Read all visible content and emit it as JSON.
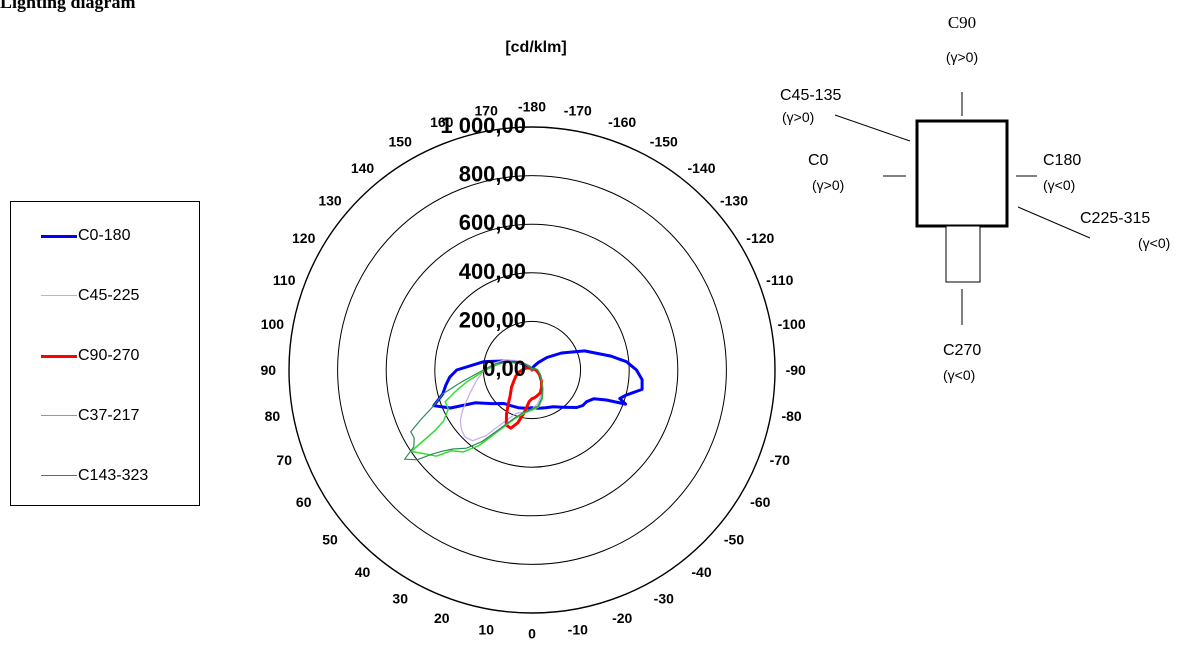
{
  "heading": "Lighting diagram",
  "legend": [
    {
      "label": "C0-180",
      "color": "#0000ff",
      "width": 3
    },
    {
      "label": "C45-225",
      "color": "#c8a8f0",
      "width": 1.2
    },
    {
      "label": "C90-270",
      "color": "#ff0000",
      "width": 3
    },
    {
      "label": "C37-217",
      "color": "#33dd33",
      "width": 1.5
    },
    {
      "label": "C143-323",
      "color": "#2e8b57",
      "width": 1.2
    }
  ],
  "orientation_key": {
    "top": "C90",
    "c45": "C45-135",
    "c45_sub": "(γ>0)",
    "c0": "C0",
    "c0_sub": "(γ>0)",
    "c180": "C180",
    "c180_sub": "(γ<0)",
    "c225": "C225-315",
    "c225_sub": "(γ<0)",
    "c270": "C270",
    "c270_sub": "(γ<0)",
    "top_sub": "(γ>0)"
  },
  "chart_data": {
    "type": "polar",
    "unit_label": "[cd/klm]",
    "radial_ticks": [
      0,
      200,
      400,
      600,
      800,
      1000
    ],
    "radial_tick_labels": [
      "0,00",
      "200,00",
      "400,00",
      "600,00",
      "800,00",
      "1 000,00"
    ],
    "rmax": 1000,
    "angle_labels": [
      {
        "angle": -180,
        "text": "-180"
      },
      {
        "angle": -170,
        "text": "-170"
      },
      {
        "angle": -160,
        "text": "-160"
      },
      {
        "angle": -150,
        "text": "-150"
      },
      {
        "angle": -140,
        "text": "-140"
      },
      {
        "angle": -130,
        "text": "-130"
      },
      {
        "angle": -120,
        "text": "-120"
      },
      {
        "angle": -110,
        "text": "-110"
      },
      {
        "angle": -100,
        "text": "-100"
      },
      {
        "angle": -90,
        "text": "-90"
      },
      {
        "angle": -80,
        "text": "-80"
      },
      {
        "angle": -70,
        "text": "-70"
      },
      {
        "angle": -60,
        "text": "-60"
      },
      {
        "angle": -50,
        "text": "-50"
      },
      {
        "angle": -40,
        "text": "-40"
      },
      {
        "angle": -30,
        "text": "-30"
      },
      {
        "angle": -20,
        "text": "-20"
      },
      {
        "angle": -10,
        "text": "-10"
      },
      {
        "angle": 0,
        "text": "0"
      },
      {
        "angle": 10,
        "text": "10"
      },
      {
        "angle": 20,
        "text": "20"
      },
      {
        "angle": 30,
        "text": "30"
      },
      {
        "angle": 40,
        "text": "40"
      },
      {
        "angle": 50,
        "text": "50"
      },
      {
        "angle": 60,
        "text": "60"
      },
      {
        "angle": 70,
        "text": "70"
      },
      {
        "angle": 80,
        "text": "80"
      },
      {
        "angle": 90,
        "text": "90"
      },
      {
        "angle": 100,
        "text": "100"
      },
      {
        "angle": 110,
        "text": "110"
      },
      {
        "angle": 120,
        "text": "120"
      },
      {
        "angle": 130,
        "text": "130"
      },
      {
        "angle": 140,
        "text": "140"
      },
      {
        "angle": 150,
        "text": "150"
      },
      {
        "angle": 160,
        "text": "160"
      },
      {
        "angle": 170,
        "text": "170"
      }
    ],
    "series": [
      {
        "name": "C0-180",
        "points": [
          [
            -180,
            0
          ],
          [
            -170,
            5
          ],
          [
            -160,
            10
          ],
          [
            -150,
            20
          ],
          [
            -140,
            40
          ],
          [
            -130,
            80
          ],
          [
            -120,
            140
          ],
          [
            -110,
            230
          ],
          [
            -100,
            330
          ],
          [
            -95,
            390
          ],
          [
            -90,
            430
          ],
          [
            -85,
            455
          ],
          [
            -80,
            460
          ],
          [
            -75,
            400
          ],
          [
            -72,
            380
          ],
          [
            -70,
            410
          ],
          [
            -68,
            330
          ],
          [
            -65,
            280
          ],
          [
            -60,
            260
          ],
          [
            -55,
            255
          ],
          [
            -50,
            240
          ],
          [
            -40,
            200
          ],
          [
            -30,
            175
          ],
          [
            -20,
            165
          ],
          [
            -10,
            160
          ],
          [
            0,
            155
          ],
          [
            10,
            160
          ],
          [
            20,
            165
          ],
          [
            30,
            170
          ],
          [
            40,
            180
          ],
          [
            50,
            215
          ],
          [
            60,
            270
          ],
          [
            65,
            370
          ],
          [
            70,
            430
          ],
          [
            75,
            380
          ],
          [
            80,
            360
          ],
          [
            85,
            340
          ],
          [
            90,
            310
          ],
          [
            100,
            200
          ],
          [
            110,
            110
          ],
          [
            120,
            60
          ],
          [
            130,
            30
          ],
          [
            140,
            15
          ],
          [
            150,
            8
          ],
          [
            160,
            4
          ],
          [
            170,
            2
          ],
          [
            180,
            0
          ]
        ]
      },
      {
        "name": "C45-225",
        "points": [
          [
            -180,
            0
          ],
          [
            -150,
            6
          ],
          [
            -120,
            12
          ],
          [
            -90,
            22
          ],
          [
            -60,
            38
          ],
          [
            -40,
            55
          ],
          [
            -30,
            80
          ],
          [
            -20,
            110
          ],
          [
            -10,
            140
          ],
          [
            0,
            160
          ],
          [
            10,
            175
          ],
          [
            20,
            190
          ],
          [
            30,
            260
          ],
          [
            35,
            330
          ],
          [
            40,
            380
          ],
          [
            45,
            390
          ],
          [
            50,
            380
          ],
          [
            55,
            360
          ],
          [
            60,
            330
          ],
          [
            70,
            270
          ],
          [
            80,
            230
          ],
          [
            90,
            195
          ],
          [
            100,
            160
          ],
          [
            110,
            120
          ],
          [
            120,
            80
          ],
          [
            140,
            30
          ],
          [
            160,
            10
          ],
          [
            180,
            0
          ]
        ]
      },
      {
        "name": "C90-270",
        "points": [
          [
            -180,
            0
          ],
          [
            -150,
            4
          ],
          [
            -120,
            8
          ],
          [
            -100,
            12
          ],
          [
            -90,
            15
          ],
          [
            -80,
            20
          ],
          [
            -60,
            35
          ],
          [
            -40,
            60
          ],
          [
            -30,
            80
          ],
          [
            -20,
            100
          ],
          [
            -10,
            110
          ],
          [
            -5,
            115
          ],
          [
            0,
            118
          ],
          [
            5,
            130
          ],
          [
            10,
            175
          ],
          [
            15,
            225
          ],
          [
            20,
            255
          ],
          [
            25,
            250
          ],
          [
            30,
            210
          ],
          [
            35,
            170
          ],
          [
            40,
            140
          ],
          [
            50,
            110
          ],
          [
            60,
            85
          ],
          [
            70,
            70
          ],
          [
            80,
            55
          ],
          [
            90,
            40
          ],
          [
            110,
            25
          ],
          [
            130,
            12
          ],
          [
            150,
            5
          ],
          [
            180,
            0
          ]
        ]
      },
      {
        "name": "C37-217",
        "points": [
          [
            -180,
            0
          ],
          [
            -150,
            6
          ],
          [
            -120,
            14
          ],
          [
            -90,
            24
          ],
          [
            -60,
            40
          ],
          [
            -40,
            60
          ],
          [
            -30,
            90
          ],
          [
            -20,
            125
          ],
          [
            -10,
            155
          ],
          [
            0,
            165
          ],
          [
            10,
            180
          ],
          [
            20,
            215
          ],
          [
            30,
            300
          ],
          [
            35,
            380
          ],
          [
            40,
            440
          ],
          [
            45,
            470
          ],
          [
            48,
            530
          ],
          [
            52,
            560
          ],
          [
            56,
            600
          ],
          [
            58,
            470
          ],
          [
            60,
            420
          ],
          [
            65,
            380
          ],
          [
            70,
            380
          ],
          [
            75,
            320
          ],
          [
            80,
            270
          ],
          [
            90,
            190
          ],
          [
            100,
            140
          ],
          [
            110,
            100
          ],
          [
            130,
            40
          ],
          [
            150,
            15
          ],
          [
            180,
            0
          ]
        ]
      },
      {
        "name": "C143-323",
        "points": [
          [
            -180,
            0
          ],
          [
            -150,
            6
          ],
          [
            -120,
            12
          ],
          [
            -90,
            22
          ],
          [
            -60,
            40
          ],
          [
            -40,
            58
          ],
          [
            -30,
            85
          ],
          [
            -20,
            120
          ],
          [
            -10,
            150
          ],
          [
            0,
            160
          ],
          [
            10,
            175
          ],
          [
            20,
            210
          ],
          [
            30,
            290
          ],
          [
            35,
            360
          ],
          [
            40,
            420
          ],
          [
            45,
            460
          ],
          [
            48,
            500
          ],
          [
            50,
            540
          ],
          [
            52,
            600
          ],
          [
            55,
            640
          ],
          [
            57,
            580
          ],
          [
            60,
            560
          ],
          [
            63,
            560
          ],
          [
            66,
            500
          ],
          [
            70,
            430
          ],
          [
            75,
            380
          ],
          [
            80,
            300
          ],
          [
            90,
            200
          ],
          [
            100,
            150
          ],
          [
            110,
            100
          ],
          [
            130,
            40
          ],
          [
            150,
            15
          ],
          [
            180,
            0
          ]
        ]
      }
    ]
  }
}
